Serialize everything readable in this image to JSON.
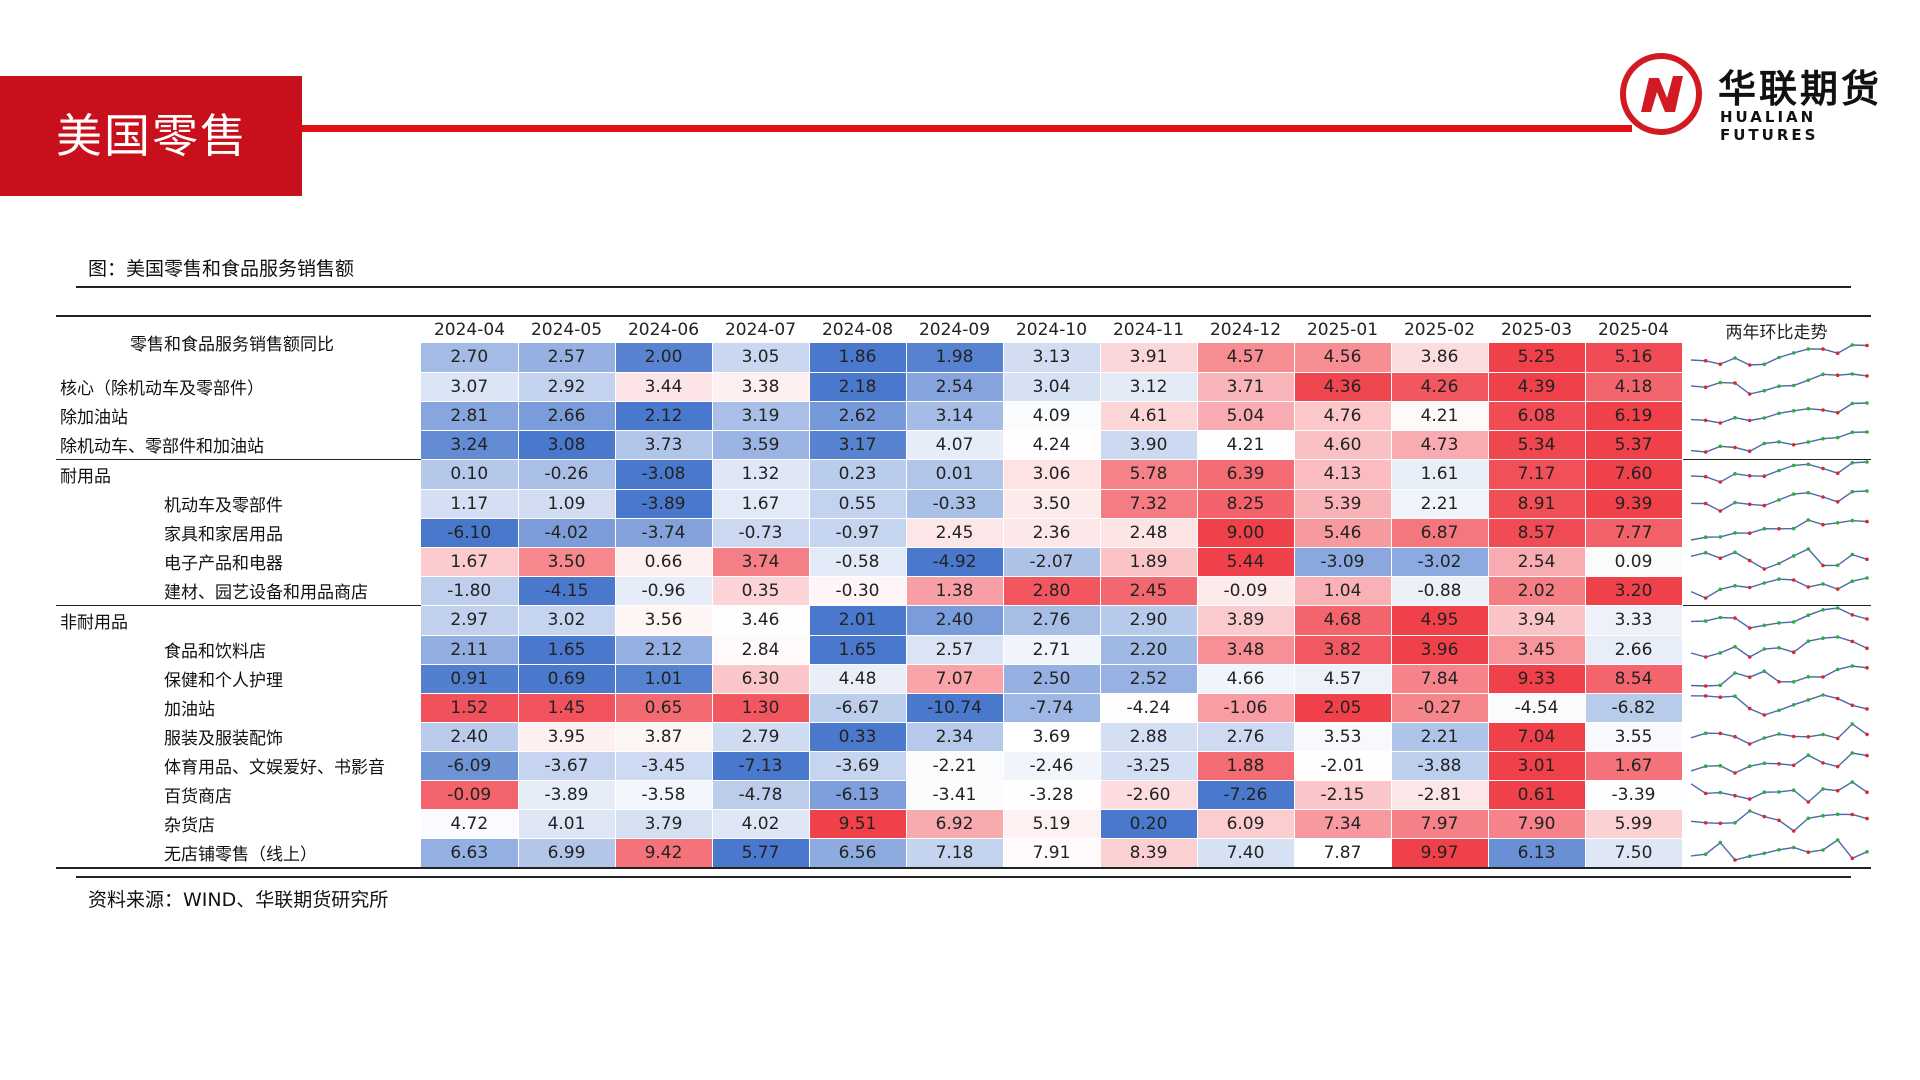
{
  "header": {
    "title": "美国零售"
  },
  "logo": {
    "cn": "华联期货",
    "en": "HUALIAN FUTURES"
  },
  "figure": {
    "caption": "图：美国零售和食品服务销售额",
    "source": "资料来源：WIND、华联期货研究所"
  },
  "table": {
    "row_header": "零售和食品服务销售额同比",
    "trend_header": "两年环比走势",
    "months": [
      "2024-04",
      "2024-05",
      "2024-06",
      "2024-07",
      "2024-08",
      "2024-09",
      "2024-10",
      "2024-11",
      "2024-12",
      "2025-01",
      "2025-02",
      "2025-03",
      "2025-04"
    ],
    "rows": [
      {
        "label": "",
        "sub": false,
        "values": [
          2.7,
          2.57,
          2.0,
          3.05,
          1.86,
          1.98,
          3.13,
          3.91,
          4.57,
          4.56,
          3.86,
          5.25,
          5.16
        ]
      },
      {
        "label": "核心（除机动车及零部件）",
        "sub": false,
        "values": [
          3.07,
          2.92,
          3.44,
          3.38,
          2.18,
          2.54,
          3.04,
          3.12,
          3.71,
          4.36,
          4.26,
          4.39,
          4.18
        ]
      },
      {
        "label": "除加油站",
        "sub": false,
        "values": [
          2.81,
          2.66,
          2.12,
          3.19,
          2.62,
          3.14,
          4.09,
          4.61,
          5.04,
          4.76,
          4.21,
          6.08,
          6.19
        ]
      },
      {
        "label": "除机动车、零部件和加油站",
        "sub": false,
        "values": [
          3.24,
          3.08,
          3.73,
          3.59,
          3.17,
          4.07,
          4.24,
          3.9,
          4.21,
          4.6,
          4.73,
          5.34,
          5.37
        ]
      },
      {
        "label": "耐用品",
        "sub": false,
        "group_start": true,
        "values": [
          0.1,
          -0.26,
          -3.08,
          1.32,
          0.23,
          0.01,
          3.06,
          5.78,
          6.39,
          4.13,
          1.61,
          7.17,
          7.6
        ]
      },
      {
        "label": "机动车及零部件",
        "sub": true,
        "values": [
          1.17,
          1.09,
          -3.89,
          1.67,
          0.55,
          -0.33,
          3.5,
          7.32,
          8.25,
          5.39,
          2.21,
          8.91,
          9.39
        ]
      },
      {
        "label": "家具和家居用品",
        "sub": true,
        "values": [
          -6.1,
          -4.02,
          -3.74,
          -0.73,
          -0.97,
          2.45,
          2.36,
          2.48,
          9.0,
          5.46,
          6.87,
          8.57,
          7.77
        ]
      },
      {
        "label": "电子产品和电器",
        "sub": true,
        "values": [
          1.67,
          3.5,
          0.66,
          3.74,
          -0.58,
          -4.92,
          -2.07,
          1.89,
          5.44,
          -3.09,
          -3.02,
          2.54,
          0.09
        ]
      },
      {
        "label": "建材、园艺设备和用品商店",
        "sub": true,
        "values": [
          -1.8,
          -4.15,
          -0.96,
          0.35,
          -0.3,
          1.38,
          2.8,
          2.45,
          -0.09,
          1.04,
          -0.88,
          2.02,
          3.2
        ]
      },
      {
        "label": "非耐用品",
        "sub": false,
        "group_start": true,
        "values": [
          2.97,
          3.02,
          3.56,
          3.46,
          2.01,
          2.4,
          2.76,
          2.9,
          3.89,
          4.68,
          4.95,
          3.94,
          3.33
        ]
      },
      {
        "label": "食品和饮料店",
        "sub": true,
        "values": [
          2.11,
          1.65,
          2.12,
          2.84,
          1.65,
          2.57,
          2.71,
          2.2,
          3.48,
          3.82,
          3.96,
          3.45,
          2.66
        ]
      },
      {
        "label": "保健和个人护理",
        "sub": true,
        "values": [
          0.91,
          0.69,
          1.01,
          6.3,
          4.48,
          7.07,
          2.5,
          2.52,
          4.66,
          4.57,
          7.84,
          9.33,
          8.54
        ]
      },
      {
        "label": "加油站",
        "sub": true,
        "values": [
          1.52,
          1.45,
          0.65,
          1.3,
          -6.67,
          -10.74,
          -7.74,
          -4.24,
          -1.06,
          2.05,
          -0.27,
          -4.54,
          -6.82
        ]
      },
      {
        "label": "服装及服装配饰",
        "sub": true,
        "values": [
          2.4,
          3.95,
          3.87,
          2.79,
          0.33,
          2.34,
          3.69,
          2.88,
          2.76,
          3.53,
          2.21,
          7.04,
          3.55
        ]
      },
      {
        "label": "体育用品、文娱爱好、书影音",
        "sub": true,
        "values": [
          -6.09,
          -3.67,
          -3.45,
          -7.13,
          -3.69,
          -2.21,
          -2.46,
          -3.25,
          1.88,
          -2.01,
          -3.88,
          3.01,
          1.67
        ]
      },
      {
        "label": "百货商店",
        "sub": true,
        "values": [
          -0.09,
          -3.89,
          -3.58,
          -4.78,
          -6.13,
          -3.41,
          -3.28,
          -2.6,
          -7.26,
          -2.15,
          -2.81,
          0.61,
          -3.39
        ]
      },
      {
        "label": "杂货店",
        "sub": true,
        "values": [
          4.72,
          4.01,
          3.79,
          4.02,
          9.51,
          6.92,
          5.19,
          0.2,
          6.09,
          7.34,
          7.97,
          7.9,
          5.99
        ]
      },
      {
        "label": "无店铺零售（线上）",
        "sub": true,
        "values": [
          6.63,
          6.99,
          9.42,
          5.77,
          6.56,
          7.18,
          7.91,
          8.39,
          7.4,
          7.87,
          9.97,
          6.13,
          7.5
        ]
      }
    ],
    "colors": {
      "low": "#4a78cc",
      "mid": "#ffffff",
      "high": "#f0414b",
      "spark_line": "#4a6aa8",
      "spark_up": "#2eab45",
      "spark_down": "#d9282f"
    }
  }
}
